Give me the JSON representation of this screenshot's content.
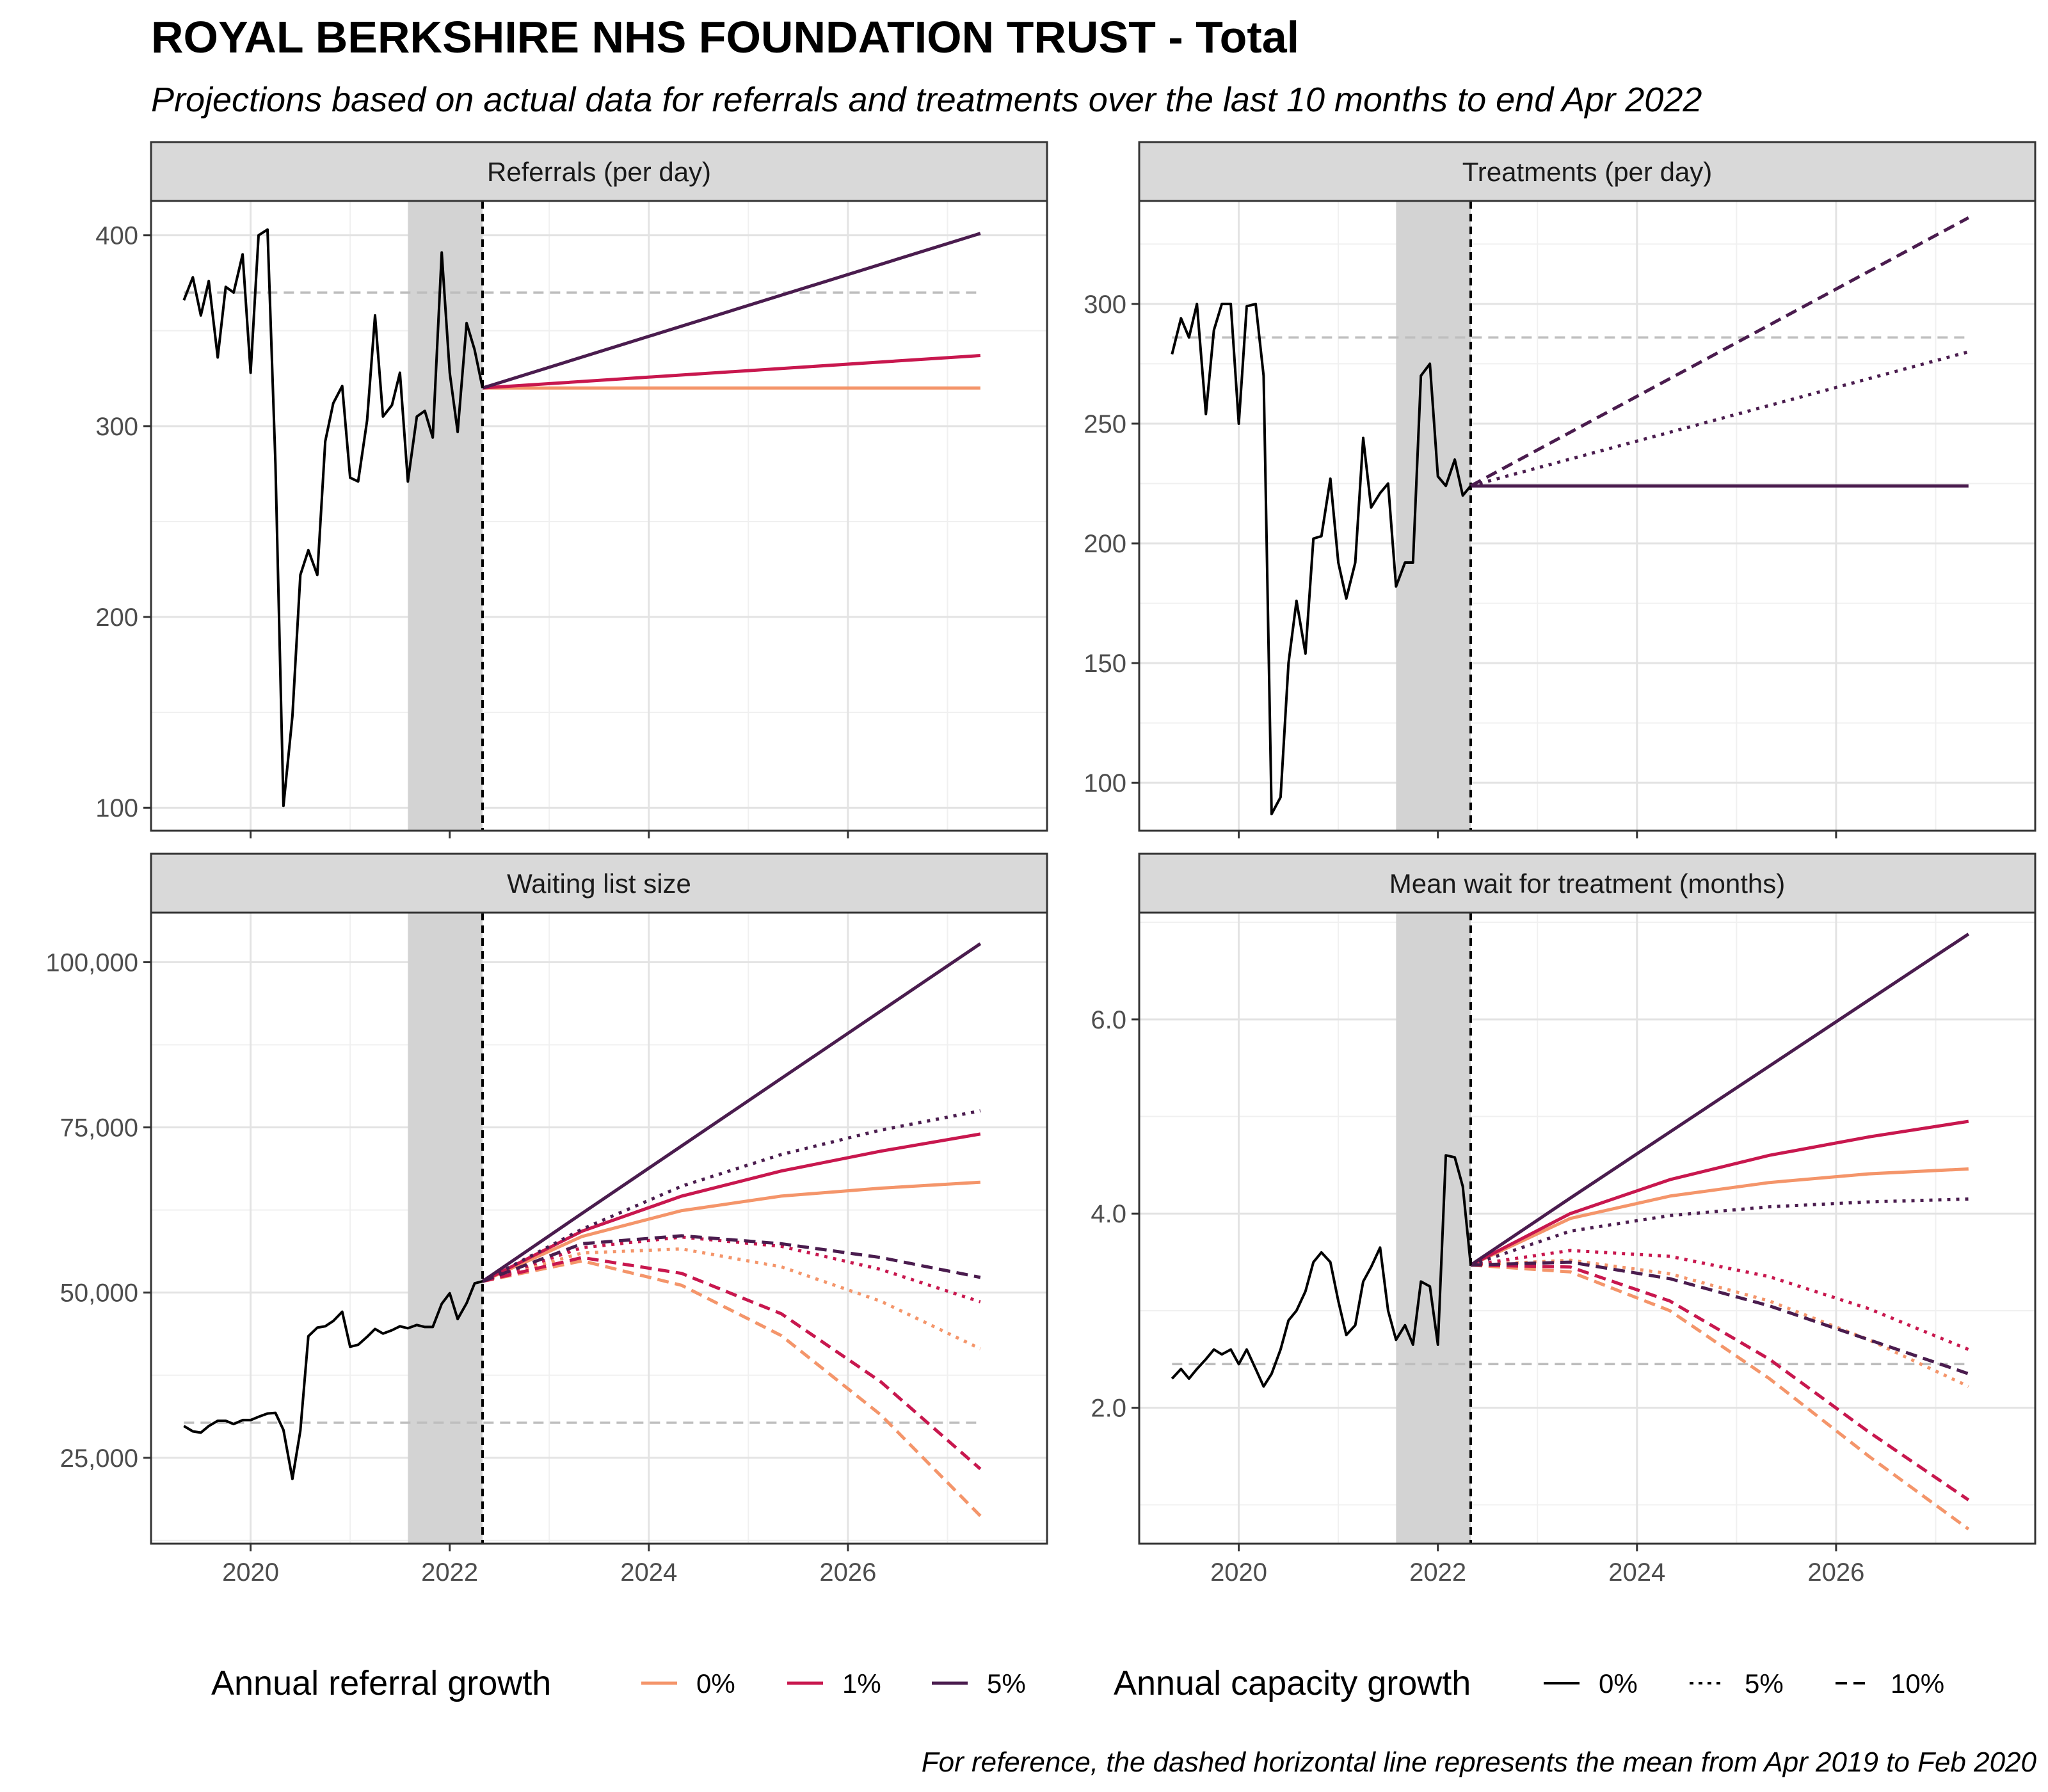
{
  "title": "ROYAL BERKSHIRE NHS FOUNDATION TRUST - Total",
  "subtitle": "Projections based on actual data for referrals and treatments over the last 10 months to end Apr 2022",
  "caption": "For reference, the dashed horizontal line represents the mean from Apr 2019 to Feb 2020",
  "legend": {
    "referral": {
      "title": "Annual referral growth",
      "items": [
        {
          "label": "0%",
          "color": "#F4956A"
        },
        {
          "label": "1%",
          "color": "#C8174E"
        },
        {
          "label": "5%",
          "color": "#4A1C4E"
        }
      ]
    },
    "capacity": {
      "title": "Annual capacity growth",
      "items": [
        {
          "label": "0%",
          "dash": "solid"
        },
        {
          "label": "5%",
          "dash": "dotted"
        },
        {
          "label": "10%",
          "dash": "dashed"
        }
      ]
    }
  },
  "chart_data": [
    {
      "type": "line",
      "title": "Referrals (per day)",
      "xlim": [
        2019.0,
        2028.0
      ],
      "xticks": [
        2020,
        2022,
        2024,
        2026
      ],
      "ylim": [
        88,
        418
      ],
      "yticks": [
        100,
        200,
        300,
        400
      ],
      "reference_mean": 370,
      "training_window": [
        2021.58,
        2022.33
      ],
      "forecast_start": 2022.33,
      "actual": {
        "x": [
          2019.33,
          2019.42,
          2019.5,
          2019.58,
          2019.67,
          2019.75,
          2019.83,
          2019.92,
          2020.0,
          2020.08,
          2020.17,
          2020.25,
          2020.33,
          2020.42,
          2020.5,
          2020.58,
          2020.67,
          2020.75,
          2020.83,
          2020.92,
          2021.0,
          2021.08,
          2021.17,
          2021.25,
          2021.33,
          2021.42,
          2021.5,
          2021.58,
          2021.67,
          2021.75,
          2021.83,
          2021.92,
          2022.0,
          2022.08,
          2022.17,
          2022.25,
          2022.33
        ],
        "y": [
          366,
          378,
          358,
          376,
          336,
          373,
          370,
          390,
          328,
          400,
          403,
          280,
          101,
          148,
          222,
          235,
          222,
          292,
          312,
          321,
          273,
          271,
          303,
          358,
          305,
          311,
          328,
          271,
          305,
          308,
          294,
          391,
          328,
          297,
          354,
          340,
          320
        ]
      },
      "projections": [
        {
          "referral_growth": "0%",
          "capacity_growth": "0%",
          "x": [
            2022.33,
            2027.33
          ],
          "y": [
            320,
            320
          ]
        },
        {
          "referral_growth": "1%",
          "capacity_growth": "0%",
          "x": [
            2022.33,
            2027.33
          ],
          "y": [
            320,
            337
          ]
        },
        {
          "referral_growth": "5%",
          "capacity_growth": "0%",
          "x": [
            2022.33,
            2027.33
          ],
          "y": [
            320,
            401
          ]
        }
      ]
    },
    {
      "type": "line",
      "title": "Treatments (per day)",
      "xlim": [
        2019.0,
        2028.0
      ],
      "xticks": [
        2020,
        2022,
        2024,
        2026
      ],
      "ylim": [
        80,
        343
      ],
      "yticks": [
        100,
        150,
        200,
        250,
        300
      ],
      "reference_mean": 286,
      "training_window": [
        2021.58,
        2022.33
      ],
      "forecast_start": 2022.33,
      "actual": {
        "x": [
          2019.33,
          2019.42,
          2019.5,
          2019.58,
          2019.67,
          2019.75,
          2019.83,
          2019.92,
          2020.0,
          2020.08,
          2020.17,
          2020.25,
          2020.33,
          2020.42,
          2020.5,
          2020.58,
          2020.67,
          2020.75,
          2020.83,
          2020.92,
          2021.0,
          2021.08,
          2021.17,
          2021.25,
          2021.33,
          2021.42,
          2021.5,
          2021.58,
          2021.67,
          2021.75,
          2021.83,
          2021.92,
          2022.0,
          2022.08,
          2022.17,
          2022.25,
          2022.33
        ],
        "y": [
          279,
          294,
          286,
          300,
          254,
          289,
          300,
          300,
          250,
          299,
          300,
          270,
          87,
          94,
          150,
          176,
          154,
          202,
          203,
          227,
          192,
          177,
          192,
          244,
          215,
          221,
          225,
          182,
          192,
          192,
          270,
          275,
          228,
          224,
          235,
          220,
          224
        ]
      },
      "projections": [
        {
          "referral_growth": "5%",
          "capacity_growth": "0%",
          "x": [
            2022.33,
            2027.33
          ],
          "y": [
            224,
            224
          ]
        },
        {
          "referral_growth": "5%",
          "capacity_growth": "5%",
          "x": [
            2022.33,
            2027.33
          ],
          "y": [
            224,
            280
          ]
        },
        {
          "referral_growth": "5%",
          "capacity_growth": "10%",
          "x": [
            2022.33,
            2027.33
          ],
          "y": [
            224,
            336
          ]
        }
      ]
    },
    {
      "type": "line",
      "title": "Waiting list size",
      "xlim": [
        2019.0,
        2028.0
      ],
      "xticks": [
        2020,
        2022,
        2024,
        2026
      ],
      "ylim": [
        12000,
        107500
      ],
      "yticks": [
        25000,
        50000,
        75000,
        100000
      ],
      "ytick_labels": [
        "25,000",
        "50,000",
        "75,000",
        "100,000"
      ],
      "reference_mean": 30300,
      "training_window": [
        2021.58,
        2022.33
      ],
      "forecast_start": 2022.33,
      "actual": {
        "x": [
          2019.33,
          2019.42,
          2019.5,
          2019.58,
          2019.67,
          2019.75,
          2019.83,
          2019.92,
          2020.0,
          2020.08,
          2020.17,
          2020.25,
          2020.33,
          2020.42,
          2020.5,
          2020.58,
          2020.67,
          2020.75,
          2020.83,
          2020.92,
          2021.0,
          2021.08,
          2021.17,
          2021.25,
          2021.33,
          2021.42,
          2021.5,
          2021.58,
          2021.67,
          2021.75,
          2021.83,
          2021.92,
          2022.0,
          2022.08,
          2022.17,
          2022.25,
          2022.33
        ],
        "y": [
          29800,
          29000,
          28800,
          29800,
          30600,
          30600,
          30100,
          30700,
          30700,
          31200,
          31700,
          31800,
          29200,
          21800,
          29100,
          43400,
          44700,
          44900,
          45700,
          47100,
          41800,
          42100,
          43300,
          44500,
          43800,
          44300,
          44900,
          44600,
          45100,
          44800,
          44800,
          48300,
          49900,
          46000,
          48400,
          51400,
          51700
        ]
      },
      "projections": [
        {
          "referral_growth": "0%",
          "capacity_growth": "0%",
          "x": [
            2022.33,
            2023.33,
            2024.33,
            2025.33,
            2026.33,
            2027.33
          ],
          "y": [
            51700,
            58500,
            62400,
            64600,
            65800,
            66700
          ]
        },
        {
          "referral_growth": "1%",
          "capacity_growth": "0%",
          "x": [
            2022.33,
            2023.33,
            2024.33,
            2025.33,
            2026.33,
            2027.33
          ],
          "y": [
            51700,
            59300,
            64600,
            68400,
            71400,
            74000
          ]
        },
        {
          "referral_growth": "5%",
          "capacity_growth": "0%",
          "x": [
            2022.33,
            2023.33,
            2024.33,
            2025.33,
            2026.33,
            2027.33
          ],
          "y": [
            51700,
            62000,
            72200,
            82400,
            92600,
            102800
          ]
        },
        {
          "referral_growth": "0%",
          "capacity_growth": "5%",
          "x": [
            2022.33,
            2023.33,
            2024.33,
            2025.33,
            2026.33,
            2027.33
          ],
          "y": [
            51700,
            56000,
            56600,
            53900,
            48700,
            41500
          ]
        },
        {
          "referral_growth": "1%",
          "capacity_growth": "5%",
          "x": [
            2022.33,
            2023.33,
            2024.33,
            2025.33,
            2026.33,
            2027.33
          ],
          "y": [
            51700,
            56800,
            58400,
            57000,
            53500,
            48600
          ]
        },
        {
          "referral_growth": "5%",
          "capacity_growth": "5%",
          "x": [
            2022.33,
            2023.33,
            2024.33,
            2025.33,
            2026.33,
            2027.33
          ],
          "y": [
            51700,
            59600,
            66100,
            70900,
            74600,
            77500
          ]
        },
        {
          "referral_growth": "0%",
          "capacity_growth": "10%",
          "x": [
            2022.33,
            2023.33,
            2024.33,
            2025.33,
            2026.33,
            2027.33
          ],
          "y": [
            51700,
            54800,
            51100,
            43500,
            31500,
            16200
          ]
        },
        {
          "referral_growth": "1%",
          "capacity_growth": "10%",
          "x": [
            2022.33,
            2023.33,
            2024.33,
            2025.33,
            2026.33,
            2027.33
          ],
          "y": [
            51700,
            55300,
            52900,
            46800,
            36500,
            23300
          ]
        },
        {
          "referral_growth": "5%",
          "capacity_growth": "10%",
          "x": [
            2022.33,
            2023.33,
            2024.33,
            2025.33,
            2026.33,
            2027.33
          ],
          "y": [
            51700,
            57400,
            58600,
            57400,
            55300,
            52300
          ]
        }
      ]
    },
    {
      "type": "line",
      "title": "Mean wait for treatment (months)",
      "xlim": [
        2019.0,
        2028.0
      ],
      "xticks": [
        2020,
        2022,
        2024,
        2026
      ],
      "ylim": [
        0.6,
        7.1
      ],
      "yticks": [
        2.0,
        4.0,
        6.0
      ],
      "ytick_labels": [
        "2.0",
        "4.0",
        "6.0"
      ],
      "reference_mean": 2.45,
      "training_window": [
        2021.58,
        2022.33
      ],
      "forecast_start": 2022.33,
      "actual": {
        "x": [
          2019.33,
          2019.42,
          2019.5,
          2019.58,
          2019.67,
          2019.75,
          2019.83,
          2019.92,
          2020.0,
          2020.08,
          2020.17,
          2020.25,
          2020.33,
          2020.42,
          2020.5,
          2020.58,
          2020.67,
          2020.75,
          2020.83,
          2020.92,
          2021.0,
          2021.08,
          2021.17,
          2021.25,
          2021.33,
          2021.42,
          2021.5,
          2021.58,
          2021.67,
          2021.75,
          2021.83,
          2021.92,
          2022.0,
          2022.08,
          2022.17,
          2022.25,
          2022.33
        ],
        "y": [
          2.3,
          2.4,
          2.3,
          2.4,
          2.5,
          2.6,
          2.55,
          2.6,
          2.45,
          2.6,
          2.4,
          2.22,
          2.35,
          2.6,
          2.9,
          3.0,
          3.2,
          3.5,
          3.6,
          3.5,
          3.1,
          2.75,
          2.85,
          3.3,
          3.45,
          3.65,
          3.0,
          2.7,
          2.85,
          2.65,
          3.3,
          3.25,
          2.65,
          4.6,
          4.58,
          4.28,
          3.47
        ]
      },
      "projections": [
        {
          "referral_growth": "0%",
          "capacity_growth": "0%",
          "x": [
            2022.33,
            2023.33,
            2024.33,
            2025.33,
            2026.33,
            2027.33
          ],
          "y": [
            3.47,
            3.95,
            4.18,
            4.32,
            4.41,
            4.46
          ]
        },
        {
          "referral_growth": "1%",
          "capacity_growth": "0%",
          "x": [
            2022.33,
            2023.33,
            2024.33,
            2025.33,
            2026.33,
            2027.33
          ],
          "y": [
            3.47,
            4.0,
            4.35,
            4.6,
            4.79,
            4.95
          ]
        },
        {
          "referral_growth": "5%",
          "capacity_growth": "0%",
          "x": [
            2022.33,
            2023.33,
            2024.33,
            2025.33,
            2026.33,
            2027.33
          ],
          "y": [
            3.47,
            4.16,
            4.84,
            5.52,
            6.2,
            6.88
          ]
        },
        {
          "referral_growth": "0%",
          "capacity_growth": "5%",
          "x": [
            2022.33,
            2023.33,
            2024.33,
            2025.33,
            2026.33,
            2027.33
          ],
          "y": [
            3.47,
            3.52,
            3.38,
            3.1,
            2.7,
            2.22
          ]
        },
        {
          "referral_growth": "1%",
          "capacity_growth": "5%",
          "x": [
            2022.33,
            2023.33,
            2024.33,
            2025.33,
            2026.33,
            2027.33
          ],
          "y": [
            3.47,
            3.62,
            3.56,
            3.35,
            3.02,
            2.6
          ]
        },
        {
          "referral_growth": "5%",
          "capacity_growth": "5%",
          "x": [
            2022.33,
            2023.33,
            2024.33,
            2025.33,
            2026.33,
            2027.33
          ],
          "y": [
            3.47,
            3.82,
            3.98,
            4.07,
            4.12,
            4.15
          ]
        },
        {
          "referral_growth": "0%",
          "capacity_growth": "10%",
          "x": [
            2022.33,
            2023.33,
            2024.33,
            2025.33,
            2026.33,
            2027.33
          ],
          "y": [
            3.47,
            3.4,
            3.0,
            2.3,
            1.5,
            0.75
          ]
        },
        {
          "referral_growth": "1%",
          "capacity_growth": "10%",
          "x": [
            2022.33,
            2023.33,
            2024.33,
            2025.33,
            2026.33,
            2027.33
          ],
          "y": [
            3.47,
            3.45,
            3.1,
            2.5,
            1.75,
            1.05
          ]
        },
        {
          "referral_growth": "5%",
          "capacity_growth": "10%",
          "x": [
            2022.33,
            2023.33,
            2024.33,
            2025.33,
            2026.33,
            2027.33
          ],
          "y": [
            3.47,
            3.5,
            3.33,
            3.05,
            2.7,
            2.35
          ]
        }
      ]
    }
  ]
}
